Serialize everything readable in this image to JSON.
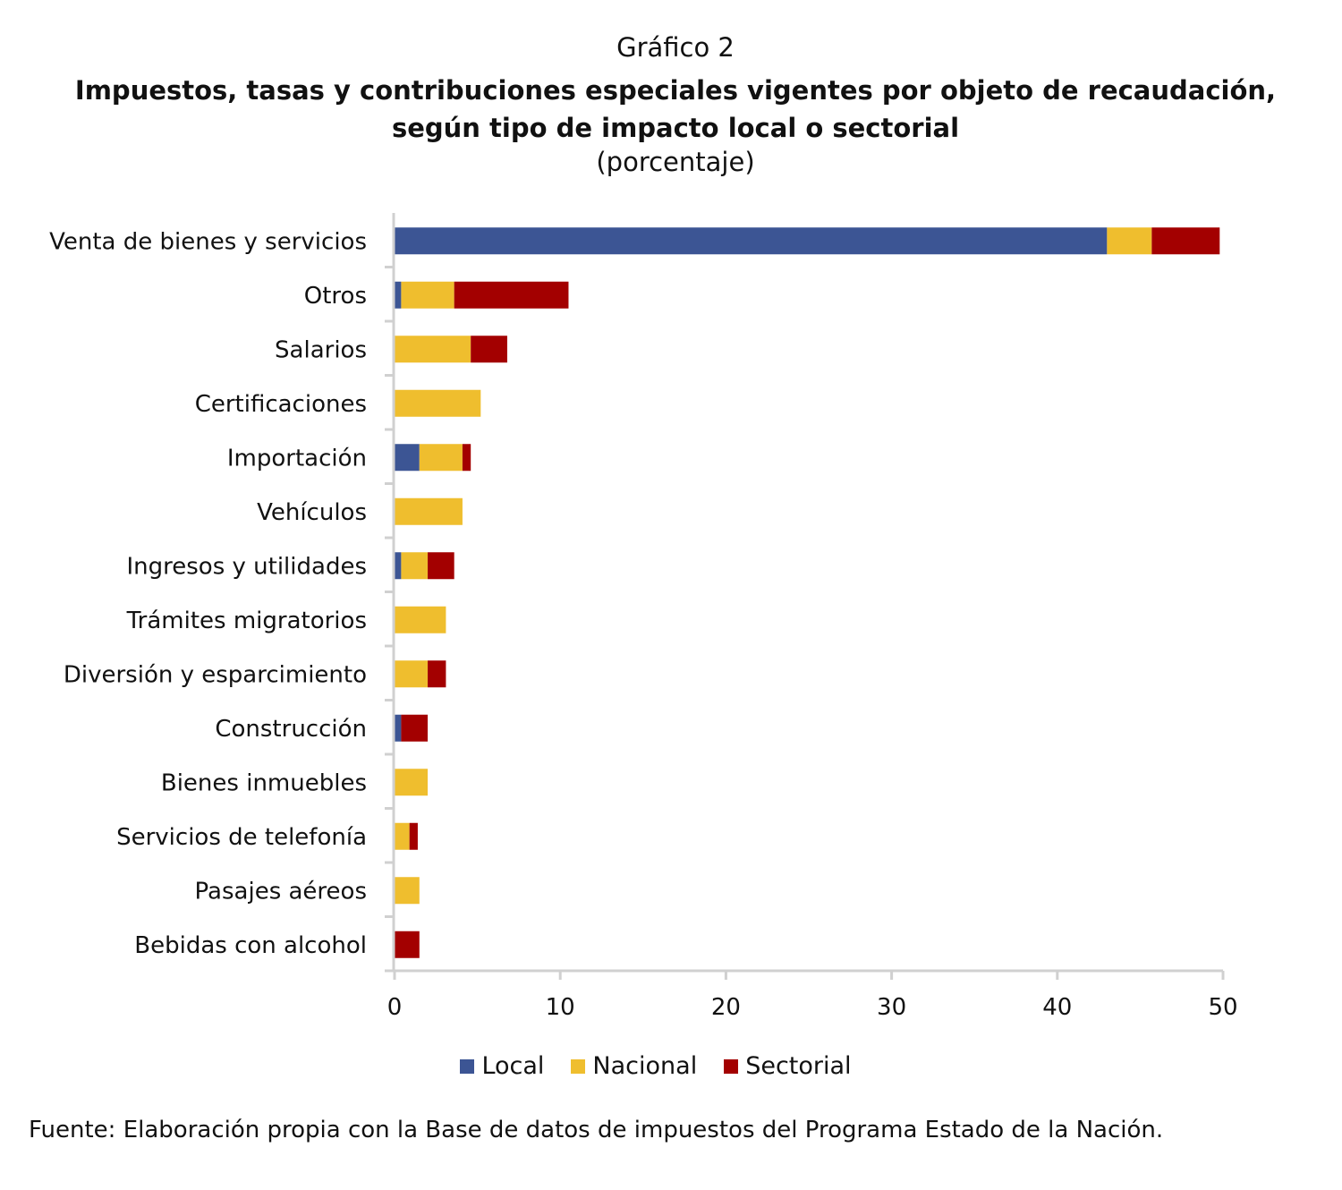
{
  "chart_data": {
    "type": "bar",
    "orientation": "horizontal",
    "stacked": true,
    "supertitle": "Gráfico 2",
    "title": "Impuestos, tasas y contribuciones especiales vigentes por objeto de recaudación, según tipo de impacto local o sectorial",
    "subtitle": "(porcentaje)",
    "categories": [
      "Venta de bienes y servicios",
      "Otros",
      "Salarios",
      "Certificaciones",
      "Importación",
      "Vehículos",
      "Ingresos y utilidades",
      "Trámites migratorios",
      "Diversión y esparcimiento",
      "Construcción",
      "Bienes inmuebles",
      "Servicios de telefonía",
      "Pasajes aéreos",
      "Bebidas con alcohol"
    ],
    "series": [
      {
        "name": "Local",
        "color": "#3c5594",
        "values": [
          43.0,
          0.4,
          0,
          0,
          1.5,
          0,
          0.4,
          0,
          0,
          0.4,
          0,
          0,
          0,
          0
        ]
      },
      {
        "name": "Nacional",
        "color": "#efbe2e",
        "values": [
          2.7,
          3.2,
          4.6,
          5.2,
          2.6,
          4.1,
          1.6,
          3.1,
          2.0,
          0,
          2.0,
          0.9,
          1.5,
          0
        ]
      },
      {
        "name": "Sectorial",
        "color": "#a30000",
        "values": [
          4.1,
          6.9,
          2.2,
          0,
          0.5,
          0,
          1.6,
          0,
          1.1,
          1.6,
          0,
          0.5,
          0,
          1.5
        ]
      }
    ],
    "xlim": [
      0,
      50
    ],
    "xticks": [
      0,
      10,
      20,
      30,
      40,
      50
    ],
    "grid": false,
    "legend": "bottom",
    "source": "Fuente: Elaboración propia con la Base de datos de impuestos del Programa Estado de la Nación."
  }
}
